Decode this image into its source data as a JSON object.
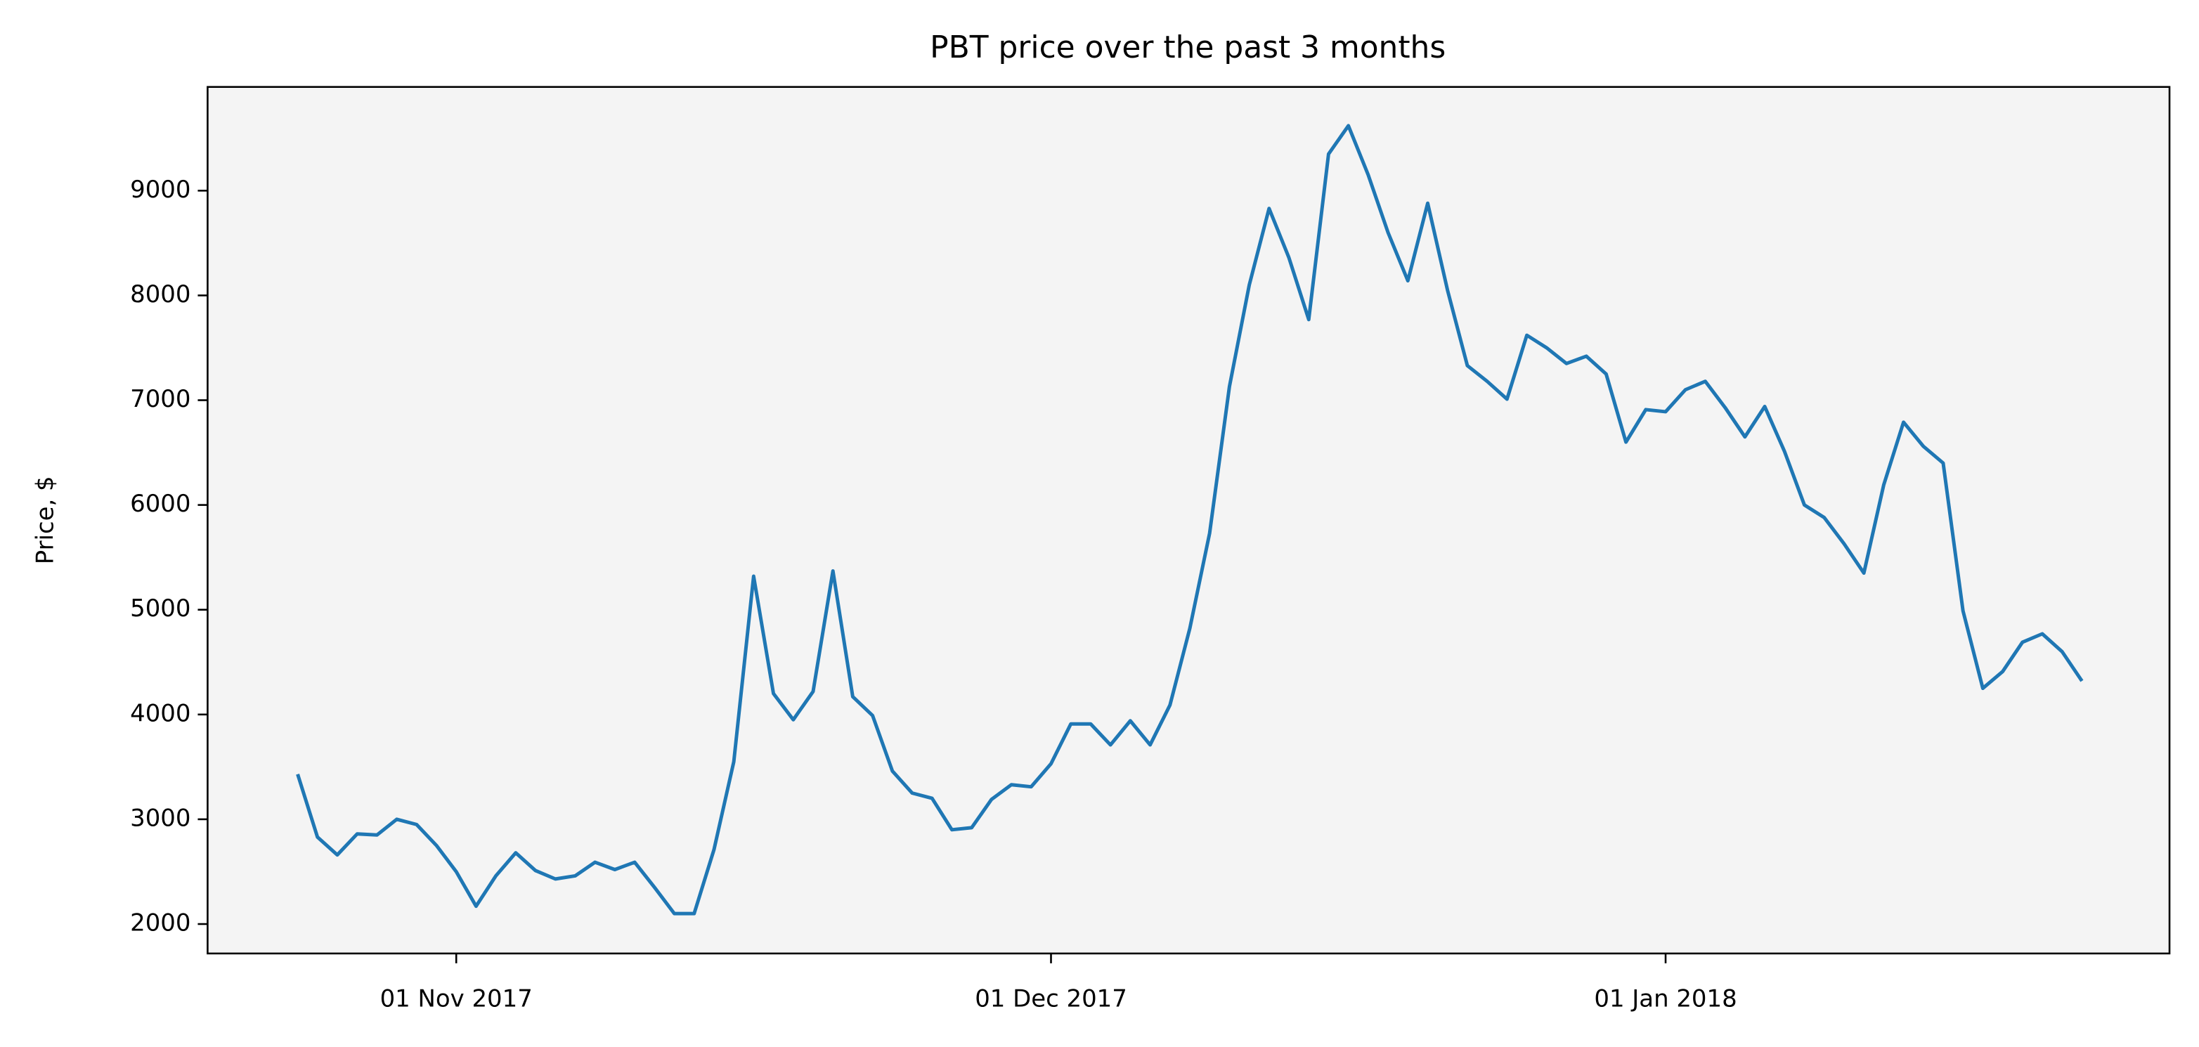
{
  "chart_data": {
    "type": "line",
    "title": "PBT price over the past 3 months",
    "y_label": "Price, $",
    "color": "#1f77b4",
    "background": "#f4f4f4",
    "x": [
      "2017-10-24",
      "2017-10-25",
      "2017-10-26",
      "2017-10-27",
      "2017-10-28",
      "2017-10-29",
      "2017-10-30",
      "2017-10-31",
      "2017-11-01",
      "2017-11-02",
      "2017-11-03",
      "2017-11-04",
      "2017-11-05",
      "2017-11-06",
      "2017-11-07",
      "2017-11-08",
      "2017-11-09",
      "2017-11-10",
      "2017-11-11",
      "2017-11-12",
      "2017-11-13",
      "2017-11-14",
      "2017-11-15",
      "2017-11-16",
      "2017-11-17",
      "2017-11-18",
      "2017-11-19",
      "2017-11-20",
      "2017-11-21",
      "2017-11-22",
      "2017-11-23",
      "2017-11-24",
      "2017-11-25",
      "2017-11-26",
      "2017-11-27",
      "2017-11-28",
      "2017-11-29",
      "2017-11-30",
      "2017-12-01",
      "2017-12-02",
      "2017-12-03",
      "2017-12-04",
      "2017-12-05",
      "2017-12-06",
      "2017-12-07",
      "2017-12-08",
      "2017-12-09",
      "2017-12-10",
      "2017-12-11",
      "2017-12-12",
      "2017-12-13",
      "2017-12-14",
      "2017-12-15",
      "2017-12-16",
      "2017-12-17",
      "2017-12-18",
      "2017-12-19",
      "2017-12-20",
      "2017-12-21",
      "2017-12-22",
      "2017-12-23",
      "2017-12-24",
      "2017-12-25",
      "2017-12-26",
      "2017-12-27",
      "2017-12-28",
      "2017-12-29",
      "2017-12-30",
      "2017-12-31",
      "2018-01-01",
      "2018-01-02",
      "2018-01-03",
      "2018-01-04",
      "2018-01-05",
      "2018-01-06",
      "2018-01-07",
      "2018-01-08",
      "2018-01-09",
      "2018-01-10",
      "2018-01-11",
      "2018-01-12",
      "2018-01-13",
      "2018-01-14",
      "2018-01-15",
      "2018-01-16",
      "2018-01-17",
      "2018-01-18",
      "2018-01-19",
      "2018-01-20",
      "2018-01-21",
      "2018-01-22"
    ],
    "values": [
      3430,
      2830,
      2660,
      2860,
      2850,
      3000,
      2950,
      2750,
      2500,
      2170,
      2460,
      2680,
      2510,
      2430,
      2460,
      2590,
      2520,
      2590,
      2350,
      2100,
      2100,
      2710,
      3550,
      5320,
      4200,
      3950,
      4220,
      5370,
      4170,
      3990,
      3460,
      3250,
      3200,
      2900,
      2920,
      3190,
      3330,
      3310,
      3530,
      3910,
      3910,
      3710,
      3940,
      3710,
      4090,
      4820,
      5730,
      7130,
      8100,
      8830,
      8360,
      7770,
      9350,
      9620,
      9150,
      8600,
      8140,
      8880,
      8050,
      7330,
      7180,
      7010,
      7620,
      7500,
      7350,
      7420,
      7250,
      6600,
      6910,
      6890,
      7100,
      7180,
      6930,
      6650,
      6940,
      6510,
      6000,
      5880,
      5630,
      5350,
      6190,
      6790,
      6560,
      6400,
      4990,
      4250,
      4410,
      4690,
      4770,
      4600,
      4320
    ],
    "xlim": [
      "2017-10-19T11:00",
      "2018-01-26T10:00"
    ],
    "xticks": [
      {
        "value": "2017-11-01",
        "label": "01 Nov 2017"
      },
      {
        "value": "2017-12-01",
        "label": "01 Dec 2017"
      },
      {
        "value": "2018-01-01",
        "label": "01 Jan 2018"
      }
    ],
    "ylim": [
      1719,
      9990
    ],
    "yticks": [
      2000,
      3000,
      4000,
      5000,
      6000,
      7000,
      8000,
      9000
    ]
  }
}
